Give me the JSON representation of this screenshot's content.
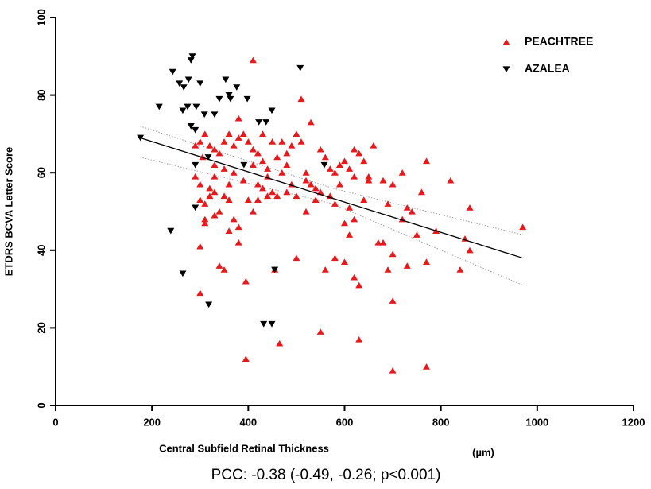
{
  "chart_data": {
    "type": "scatter",
    "xlabel": "Central Subfield Retinal Thickness",
    "xlabel_unit": "(µm)",
    "ylabel": "ETDRS BCVA Letter Score",
    "annotation": "PCC: -0.38 (-0.49, -0.26; p<0.001)",
    "xlim": [
      0,
      1200
    ],
    "ylim": [
      0,
      100
    ],
    "xticks": [
      0,
      200,
      400,
      600,
      800,
      1000,
      1200
    ],
    "yticks": [
      0,
      20,
      40,
      60,
      80,
      100
    ],
    "legend": "upper right",
    "series": [
      {
        "name": "PEACHTREE",
        "color": "#e8191c",
        "marker": "triangle-up",
        "x": [
          410,
          510,
          530,
          380,
          290,
          300,
          310,
          320,
          330,
          340,
          350,
          360,
          370,
          380,
          390,
          400,
          410,
          420,
          430,
          440,
          450,
          460,
          480,
          490,
          500,
          510,
          520,
          530,
          550,
          560,
          570,
          580,
          600,
          610,
          620,
          630,
          640,
          650,
          660,
          680,
          690,
          700,
          720,
          730,
          740,
          760,
          770,
          790,
          820,
          850,
          860,
          970,
          840,
          860,
          770,
          750,
          730,
          700,
          690,
          680,
          670,
          640,
          620,
          610,
          600,
          590,
          580,
          570,
          560,
          550,
          540,
          520,
          500,
          490,
          480,
          470,
          460,
          450,
          440,
          430,
          420,
          410,
          400,
          390,
          380,
          370,
          360,
          350,
          340,
          330,
          320,
          310,
          300,
          290,
          300,
          310,
          320,
          330,
          340,
          350,
          330,
          360,
          380,
          300,
          310,
          305,
          300,
          395,
          395,
          465,
          455,
          500,
          550,
          580,
          600,
          620,
          630,
          630,
          700,
          700,
          770,
          520,
          540,
          650,
          620,
          590,
          430,
          470,
          350,
          360,
          370,
          410,
          440,
          480,
          330,
          420,
          610,
          720
        ],
        "values": [
          89,
          79,
          73,
          74,
          67,
          68,
          70,
          67,
          66,
          65,
          68,
          70,
          67,
          69,
          70,
          68,
          66,
          65,
          63,
          61,
          68,
          64,
          65,
          67,
          70,
          68,
          60,
          57,
          66,
          64,
          61,
          60,
          63,
          61,
          66,
          65,
          63,
          59,
          67,
          58,
          52,
          57,
          60,
          51,
          50,
          55,
          63,
          45,
          58,
          43,
          51,
          46,
          35,
          40,
          37,
          44,
          36,
          39,
          35,
          42,
          42,
          53,
          48,
          51,
          47,
          57,
          52,
          54,
          35,
          55,
          56,
          58,
          54,
          57,
          55,
          60,
          54,
          55,
          54,
          56,
          53,
          50,
          53,
          58,
          42,
          48,
          53,
          54,
          50,
          49,
          56,
          52,
          57,
          59,
          53,
          47,
          54,
          55,
          36,
          35,
          59,
          45,
          46,
          41,
          48,
          64,
          29,
          32,
          12,
          16,
          35,
          38,
          19,
          38,
          37,
          33,
          31,
          17,
          27,
          9,
          10,
          50,
          53,
          58,
          59,
          62,
          70,
          68,
          61,
          57,
          60,
          62,
          59,
          62,
          62,
          57,
          44,
          48
        ]
      },
      {
        "name": "AZALEA",
        "color": "#000000",
        "marker": "triangle-down",
        "x": [
          176,
          215,
          243,
          257,
          266,
          276,
          281,
          284,
          264,
          274,
          281,
          290,
          300,
          292,
          309,
          330,
          340,
          353,
          360,
          363,
          376,
          398,
          422,
          437,
          449,
          508,
          290,
          290,
          239,
          264,
          318,
          432,
          449,
          455,
          391,
          558,
          317
        ],
        "values": [
          69,
          77,
          86,
          83,
          82,
          84,
          89,
          90,
          76,
          77,
          72,
          71,
          83,
          77,
          75,
          75,
          79,
          84,
          80,
          79,
          82,
          79,
          73,
          73,
          76,
          87,
          51,
          62,
          45,
          34,
          26,
          21,
          21,
          35,
          62,
          62,
          64
        ]
      }
    ],
    "fit": {
      "color": "#000000",
      "x": [
        175,
        970
      ],
      "values": [
        69,
        38
      ]
    },
    "ci_upper": {
      "color": "#9a9a9a",
      "x": [
        175,
        575,
        970
      ],
      "values": [
        72,
        56,
        44
      ]
    },
    "ci_lower": {
      "color": "#9a9a9a",
      "x": [
        175,
        575,
        970
      ],
      "values": [
        64,
        52,
        31
      ]
    }
  }
}
